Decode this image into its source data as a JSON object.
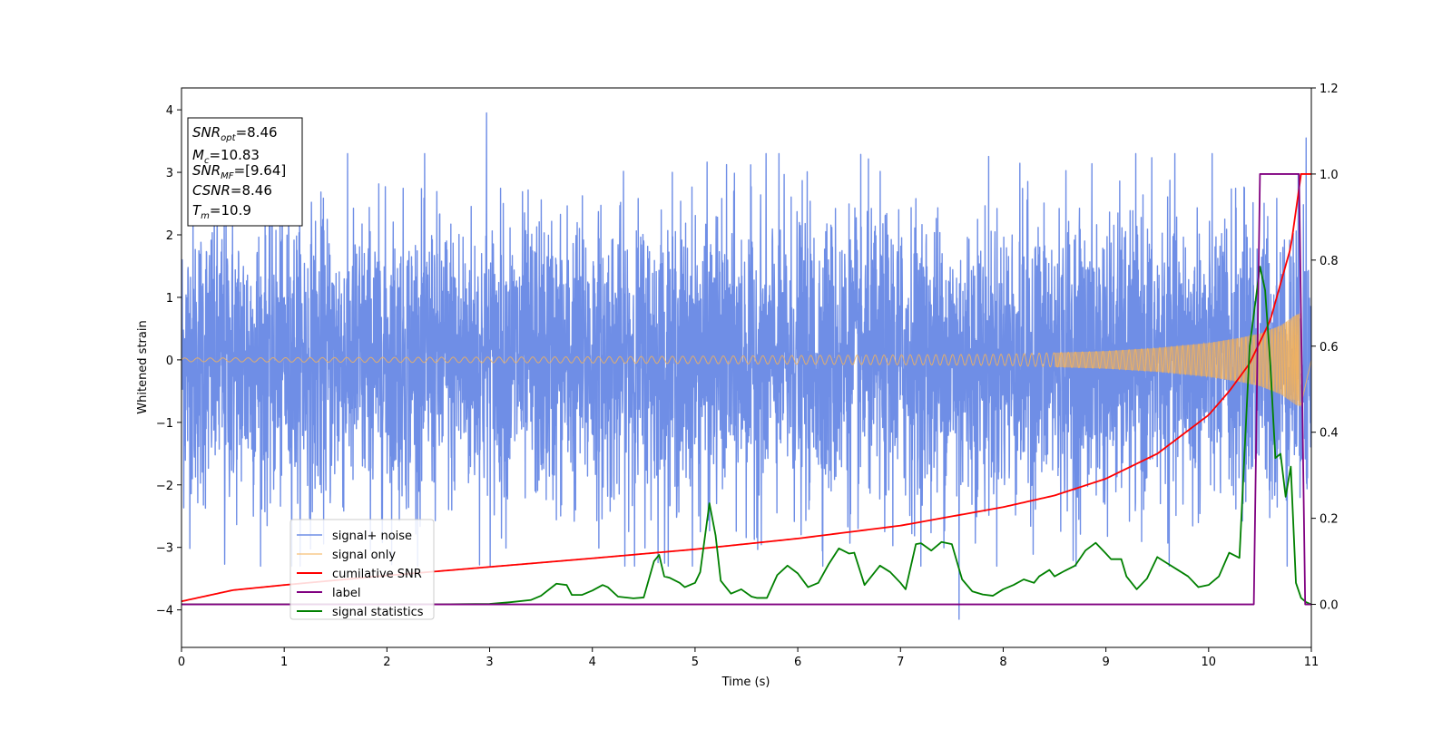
{
  "chart_data": {
    "type": "line",
    "title": "",
    "xlabel": "Time (s)",
    "ylabel": "Whitened strain",
    "xlim": [
      0,
      11
    ],
    "ylim": [
      -4.6,
      4.35
    ],
    "y2lim": [
      -0.1,
      1.2
    ],
    "grid": false,
    "legend_location": "lower-left",
    "x_ticks": [
      "0",
      "1",
      "2",
      "3",
      "4",
      "5",
      "6",
      "7",
      "8",
      "9",
      "10",
      "11"
    ],
    "y_ticks": [
      "−4",
      "−3",
      "−2",
      "−1",
      "0",
      "1",
      "2",
      "3",
      "4"
    ],
    "y2_ticks": [
      "0.0",
      "0.2",
      "0.4",
      "0.6",
      "0.8",
      "1.0",
      "1.2"
    ],
    "annotation": {
      "lines": [
        {
          "sym": "SNR",
          "sub": "opt",
          "val": "=8.46"
        },
        {
          "sym": "M",
          "sub": "c",
          "val": "=10.83"
        },
        {
          "sym": "SNR",
          "sub": "MF",
          "val": "=[9.64]"
        },
        {
          "sym": "CSNR",
          "sub": "",
          "val": "=8.46"
        },
        {
          "sym": "T",
          "sub": "m",
          "val": "=10.9"
        }
      ]
    },
    "series": [
      {
        "name": "signal+ noise",
        "axis": "left",
        "color": "#6f8ee6",
        "kind": "noise",
        "sigma": 1.15,
        "notable_peaks": [
          [
            2.97,
            3.95
          ],
          [
            7.57,
            -4.15
          ],
          [
            0.42,
            -3.27
          ],
          [
            10.95,
            3.55
          ]
        ]
      },
      {
        "name": "signal only",
        "axis": "left",
        "color": "#f5b35a",
        "kind": "chirp",
        "envelope": [
          [
            0,
            0.03
          ],
          [
            4,
            0.05
          ],
          [
            8,
            0.09
          ],
          [
            9,
            0.14
          ],
          [
            9.5,
            0.19
          ],
          [
            10,
            0.27
          ],
          [
            10.3,
            0.35
          ],
          [
            10.5,
            0.42
          ],
          [
            10.7,
            0.55
          ],
          [
            10.85,
            0.72
          ],
          [
            10.9,
            0.75
          ]
        ],
        "end_time": 10.9
      },
      {
        "name": "cumilative SNR",
        "axis": "right",
        "color": "#ff0000",
        "kind": "line",
        "x": [
          0,
          0.5,
          1,
          2,
          3,
          4,
          5,
          6,
          7,
          8,
          8.5,
          9,
          9.5,
          10,
          10.2,
          10.4,
          10.6,
          10.8,
          10.9,
          11
        ],
        "y": [
          0.007,
          0.033,
          0.045,
          0.067,
          0.087,
          0.107,
          0.128,
          0.153,
          0.183,
          0.226,
          0.253,
          0.292,
          0.35,
          0.44,
          0.495,
          0.56,
          0.66,
          0.83,
          1.0,
          1.0
        ]
      },
      {
        "name": "label",
        "axis": "right",
        "color": "#800080",
        "kind": "line",
        "x": [
          0,
          10.44,
          10.5,
          10.88,
          10.94,
          11
        ],
        "y": [
          0.0,
          0.0,
          1.0,
          1.0,
          0.0,
          0.0
        ]
      },
      {
        "name": "signal statistics",
        "axis": "right",
        "color": "#008000",
        "kind": "line",
        "x": [
          0,
          0.5,
          1.0,
          1.5,
          2.0,
          2.5,
          3.0,
          3.2,
          3.4,
          3.5,
          3.65,
          3.75,
          3.8,
          3.9,
          4.0,
          4.1,
          4.15,
          4.25,
          4.4,
          4.5,
          4.6,
          4.65,
          4.7,
          4.75,
          4.85,
          4.9,
          5.0,
          5.05,
          5.14,
          5.2,
          5.25,
          5.35,
          5.45,
          5.55,
          5.6,
          5.7,
          5.8,
          5.9,
          6.0,
          6.1,
          6.2,
          6.3,
          6.4,
          6.5,
          6.55,
          6.65,
          6.7,
          6.8,
          6.9,
          7.0,
          7.05,
          7.15,
          7.2,
          7.3,
          7.4,
          7.5,
          7.6,
          7.7,
          7.8,
          7.9,
          8.0,
          8.1,
          8.2,
          8.3,
          8.35,
          8.45,
          8.5,
          8.6,
          8.7,
          8.8,
          8.9,
          9.0,
          9.05,
          9.15,
          9.2,
          9.3,
          9.4,
          9.5,
          9.6,
          9.7,
          9.8,
          9.9,
          10.0,
          10.1,
          10.2,
          10.3,
          10.4,
          10.5,
          10.55,
          10.6,
          10.65,
          10.7,
          10.75,
          10.8,
          10.85,
          10.9,
          10.95,
          11.0
        ],
        "y": [
          0.0,
          0.0,
          0.0,
          0.0,
          0.0,
          0.0,
          0.001,
          0.005,
          0.01,
          0.02,
          0.048,
          0.045,
          0.022,
          0.022,
          0.032,
          0.045,
          0.04,
          0.018,
          0.014,
          0.016,
          0.1,
          0.115,
          0.065,
          0.062,
          0.05,
          0.04,
          0.05,
          0.075,
          0.235,
          0.16,
          0.055,
          0.025,
          0.035,
          0.018,
          0.015,
          0.015,
          0.068,
          0.09,
          0.072,
          0.04,
          0.05,
          0.093,
          0.13,
          0.118,
          0.12,
          0.045,
          0.06,
          0.09,
          0.075,
          0.05,
          0.035,
          0.14,
          0.142,
          0.125,
          0.145,
          0.14,
          0.058,
          0.03,
          0.023,
          0.02,
          0.035,
          0.045,
          0.058,
          0.05,
          0.065,
          0.08,
          0.065,
          0.078,
          0.09,
          0.125,
          0.143,
          0.118,
          0.105,
          0.105,
          0.065,
          0.035,
          0.06,
          0.11,
          0.095,
          0.08,
          0.065,
          0.04,
          0.045,
          0.065,
          0.12,
          0.108,
          0.6,
          0.785,
          0.73,
          0.56,
          0.34,
          0.35,
          0.25,
          0.32,
          0.05,
          0.015,
          0.005,
          0.0
        ]
      }
    ]
  }
}
